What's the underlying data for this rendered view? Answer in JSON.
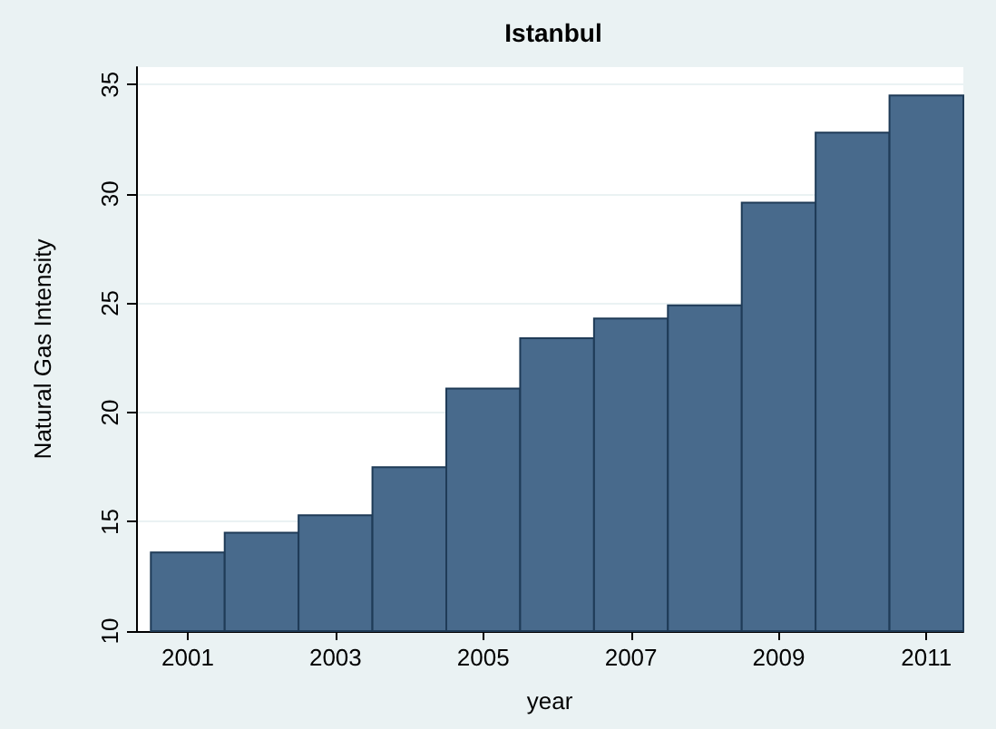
{
  "chart_data": {
    "type": "bar",
    "title": "Istanbul",
    "xlabel": "year",
    "ylabel": "Natural Gas Intensity",
    "x": [
      2001,
      2002,
      2003,
      2004,
      2005,
      2006,
      2007,
      2008,
      2009,
      2010,
      2011
    ],
    "values": [
      13.6,
      14.5,
      15.3,
      17.5,
      21.1,
      23.4,
      24.3,
      24.9,
      29.6,
      32.8,
      34.5
    ],
    "color": "#486a8c",
    "xlim": [
      2000.3,
      2011.5
    ],
    "xticks": [
      2001,
      2003,
      2005,
      2007,
      2009,
      2011
    ],
    "ylim": [
      10,
      35.8
    ],
    "yticks": [
      10,
      15,
      20,
      25,
      30,
      35
    ],
    "grid": "y"
  }
}
